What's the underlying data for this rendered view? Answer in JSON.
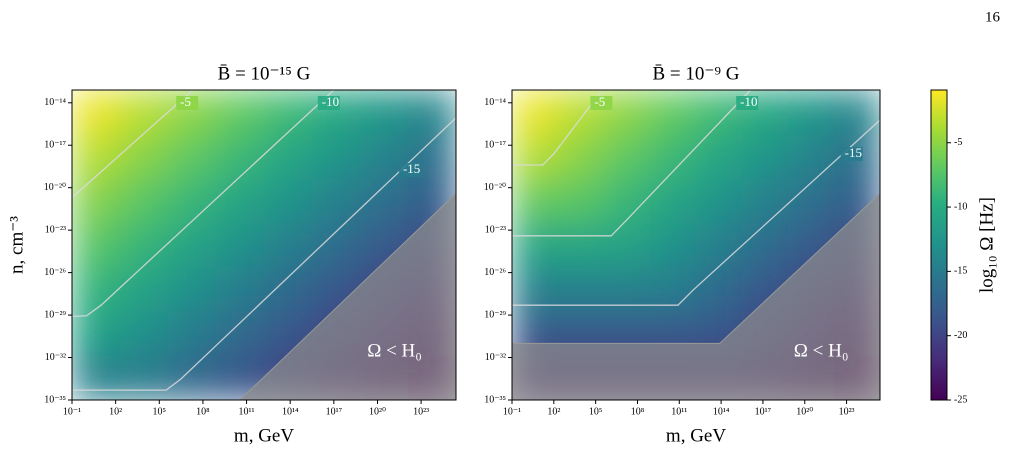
{
  "page_number": "16",
  "colorbar": {
    "label": "log₁₀ Ω [Hz]",
    "colormap": "viridis",
    "lim": [
      -25,
      -0.9
    ],
    "ticks": [
      -5,
      -10,
      -15,
      -20,
      -25
    ]
  },
  "chart_data": [
    {
      "type": "contour",
      "title": "B̄ = 10⁻¹⁵ G",
      "x_label": "m, GeV",
      "y_label": "n, cm⁻³",
      "xscale": "log",
      "yscale": "log",
      "xlim": [
        0.1,
        2.5e+25
      ],
      "ylim": [
        1e-35,
        8e-14
      ],
      "xticks": [
        {
          "value": 0.1,
          "label": "10⁻¹"
        },
        {
          "value": 100,
          "label": "10²"
        },
        {
          "value": 100000.0,
          "label": "10⁵"
        },
        {
          "value": 100000000.0,
          "label": "10⁸"
        },
        {
          "value": 100000000000.0,
          "label": "10¹¹"
        },
        {
          "value": 100000000000000.0,
          "label": "10¹⁴"
        },
        {
          "value": 1e+17,
          "label": "10¹⁷"
        },
        {
          "value": 1e+20,
          "label": "10²⁰"
        },
        {
          "value": 1e+23,
          "label": "10²³"
        }
      ],
      "yticks": [
        {
          "value": 1e-14,
          "label": "10⁻¹⁴"
        },
        {
          "value": 1e-17,
          "label": "10⁻¹⁷"
        },
        {
          "value": 1e-20,
          "label": "10⁻²⁰"
        },
        {
          "value": 1e-23,
          "label": "10⁻²³"
        },
        {
          "value": 1e-26,
          "label": "10⁻²⁶"
        },
        {
          "value": 1e-29,
          "label": "10⁻²⁹"
        },
        {
          "value": 1e-32,
          "label": "10⁻³²"
        },
        {
          "value": 1e-35,
          "label": "10⁻³⁵"
        }
      ],
      "z": [
        [
          -1.5,
          -3.3,
          -5.0,
          -6.8,
          -8.6,
          -10.4,
          -12.2,
          -14.0
        ],
        [
          -3.4,
          -5.2,
          -7.0,
          -8.8,
          -10.6,
          -12.4,
          -14.2,
          -16.0
        ],
        [
          -5.4,
          -7.2,
          -9.0,
          -10.8,
          -12.6,
          -14.4,
          -16.1,
          -17.9
        ],
        [
          -7.3,
          -9.1,
          -10.9,
          -12.7,
          -14.5,
          -16.3,
          -18.1,
          -19.9
        ],
        [
          -9.3,
          -11.1,
          -12.9,
          -14.7,
          -16.5,
          -18.3,
          -20.1,
          -21.9
        ],
        [
          -11.2,
          -13.0,
          -14.8,
          -16.6,
          -18.4,
          -20.2,
          -22.0,
          -23.8
        ],
        [
          -14.6,
          -15.0,
          -16.8,
          -18.6,
          -20.4,
          -22.2,
          -24.0,
          -25.0
        ]
      ],
      "contour_color": "#dcdcdc",
      "contours": [
        {
          "level": -5,
          "x": [
            0.1,
            20000000.0
          ],
          "y": [
            2e-21,
            8e-14
          ]
        },
        {
          "level": -10,
          "x": [
            0.1,
            1,
            10,
            1e+17
          ],
          "y": [
            8e-30,
            9e-30,
            5e-29,
            8e-14
          ]
        },
        {
          "level": -15,
          "x": [
            0.1,
            300000.0,
            3000000.0,
            2.5e+25
          ],
          "y": [
            5e-35,
            5e-35,
            3e-34,
            8.7e-16
          ]
        }
      ],
      "region": {
        "label": "Ω < H₀",
        "color": "#8c8c8c",
        "x": [
          35000000000.0,
          2.5e+25,
          2.5e+25
        ],
        "y": [
          1e-35,
          4e-21,
          1e-35
        ]
      }
    },
    {
      "type": "contour",
      "title": "B̄ = 10⁻⁹ G",
      "x_label": "m, GeV",
      "xscale": "log",
      "yscale": "log",
      "xlim": [
        0.1,
        2.5e+25
      ],
      "ylim": [
        1e-35,
        8e-14
      ],
      "xticks": [
        {
          "value": 0.1,
          "label": "10⁻¹"
        },
        {
          "value": 100,
          "label": "10²"
        },
        {
          "value": 100000.0,
          "label": "10⁵"
        },
        {
          "value": 100000000.0,
          "label": "10⁸"
        },
        {
          "value": 100000000000.0,
          "label": "10¹¹"
        },
        {
          "value": 100000000000000.0,
          "label": "10¹⁴"
        },
        {
          "value": 1e+17,
          "label": "10¹⁷"
        },
        {
          "value": 1e+20,
          "label": "10²⁰"
        },
        {
          "value": 1e+23,
          "label": "10²³"
        }
      ],
      "yticks": [
        {
          "value": 1e-14,
          "label": "10⁻¹⁴"
        },
        {
          "value": 1e-17,
          "label": "10⁻¹⁷"
        },
        {
          "value": 1e-20,
          "label": "10⁻²⁰"
        },
        {
          "value": 1e-23,
          "label": "10⁻²³"
        },
        {
          "value": 1e-26,
          "label": "10⁻²⁶"
        },
        {
          "value": 1e-29,
          "label": "10⁻²⁹"
        },
        {
          "value": 1e-32,
          "label": "10⁻³²"
        },
        {
          "value": 1e-35,
          "label": "10⁻³⁵"
        }
      ],
      "z": [
        [
          -1.5,
          -3.3,
          -5.0,
          -6.8,
          -8.6,
          -10.4,
          -12.2,
          -14.0
        ],
        [
          -3.4,
          -5.2,
          -7.0,
          -8.8,
          -10.6,
          -12.4,
          -14.2,
          -16.0
        ],
        [
          -6.7,
          -7.2,
          -9.0,
          -10.8,
          -12.6,
          -14.4,
          -16.1,
          -17.9
        ],
        [
          -10.6,
          -10.6,
          -10.9,
          -12.7,
          -14.5,
          -16.3,
          -18.1,
          -19.9
        ],
        [
          -14.4,
          -14.4,
          -14.4,
          -14.7,
          -16.5,
          -18.3,
          -20.1,
          -21.9
        ],
        [
          -18.2,
          -18.2,
          -18.2,
          -18.2,
          -18.4,
          -20.2,
          -22.0,
          -23.8
        ],
        [
          -22.0,
          -22.0,
          -22.0,
          -22.0,
          -22.0,
          -22.2,
          -24.0,
          -25.0
        ]
      ],
      "contour_color": "#dcdcdc",
      "contours": [
        {
          "level": -5,
          "x": [
            0.1,
            16,
            100,
            300000.0
          ],
          "y": [
            4e-19,
            4e-19,
            2.5e-18,
            8e-14
          ]
        },
        {
          "level": -10,
          "x": [
            0.1,
            1300000.0,
            16000000.0,
            1.3e+16
          ],
          "y": [
            4e-24,
            4e-24,
            5e-23,
            8e-14
          ]
        },
        {
          "level": -15,
          "x": [
            0.1,
            80000000000.0,
            1000000000000.0,
            2.5e+25
          ],
          "y": [
            5e-29,
            5e-29,
            6e-28,
            6e-16
          ]
        }
      ],
      "region": {
        "label": "Ω < H₀",
        "color": "#8c8c8c",
        "x": [
          0.1,
          80000000000000.0,
          2.5e+25,
          2.5e+25,
          0.1
        ],
        "y": [
          1e-31,
          1e-31,
          4e-21,
          1e-35,
          1e-35
        ]
      }
    }
  ]
}
